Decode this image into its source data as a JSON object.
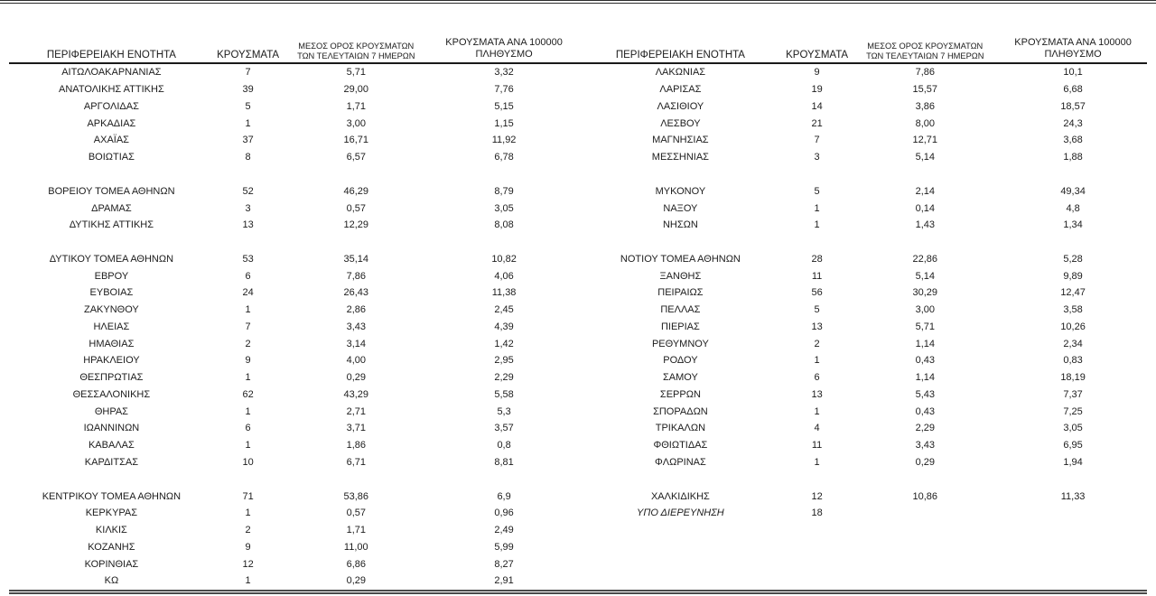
{
  "colors": {
    "text": "#1c1c1c",
    "header_rule": "#1a1a1a",
    "bottom_rule": "#4a4a4a",
    "top_rule": "#2b2b2b",
    "background": "#ffffff"
  },
  "headers": {
    "region": "ΠΕΡΙΦΕΡΕΙΑΚΗ ΕΝΟΤΗΤΑ",
    "cases": "ΚΡΟΥΣΜΑΤΑ",
    "avg7_line1": "ΜΕΣΟΣ ΟΡΟΣ ΚΡΟΥΣΜΑΤΩΝ",
    "avg7_line2": "ΤΩΝ ΤΕΛΕΥΤΑΙΩΝ 7 ΗΜΕΡΩΝ",
    "per100k_line1": "ΚΡΟΥΣΜΑΤΑ ΑΝΑ 100000",
    "per100k_line2": "ΠΛΗΘΥΣΜΟ"
  },
  "left_rows": [
    {
      "region": "ΑΙΤΩΛΟΑΚΑΡΝΑΝΙΑΣ",
      "cases": "7",
      "avg7": "5,71",
      "per100k": "3,32"
    },
    {
      "region": "ΑΝΑΤΟΛΙΚΗΣ ΑΤΤΙΚΗΣ",
      "cases": "39",
      "avg7": "29,00",
      "per100k": "7,76"
    },
    {
      "region": "ΑΡΓΟΛΙΔΑΣ",
      "cases": "5",
      "avg7": "1,71",
      "per100k": "5,15"
    },
    {
      "region": "ΑΡΚΑΔΙΑΣ",
      "cases": "1",
      "avg7": "3,00",
      "per100k": "1,15"
    },
    {
      "region": "ΑΧΑΪΑΣ",
      "cases": "37",
      "avg7": "16,71",
      "per100k": "11,92"
    },
    {
      "region": "ΒΟΙΩΤΙΑΣ",
      "cases": "8",
      "avg7": "6,57",
      "per100k": "6,78"
    },
    {
      "spacer": true
    },
    {
      "region": "ΒΟΡΕΙΟΥ ΤΟΜΕΑ ΑΘΗΝΩΝ",
      "cases": "52",
      "avg7": "46,29",
      "per100k": "8,79"
    },
    {
      "region": "ΔΡΑΜΑΣ",
      "cases": "3",
      "avg7": "0,57",
      "per100k": "3,05"
    },
    {
      "region": "ΔΥΤΙΚΗΣ ΑΤΤΙΚΗΣ",
      "cases": "13",
      "avg7": "12,29",
      "per100k": "8,08"
    },
    {
      "spacer": true
    },
    {
      "region": "ΔΥΤΙΚΟΥ ΤΟΜΕΑ ΑΘΗΝΩΝ",
      "cases": "53",
      "avg7": "35,14",
      "per100k": "10,82"
    },
    {
      "region": "ΕΒΡΟΥ",
      "cases": "6",
      "avg7": "7,86",
      "per100k": "4,06"
    },
    {
      "region": "ΕΥΒΟΙΑΣ",
      "cases": "24",
      "avg7": "26,43",
      "per100k": "11,38"
    },
    {
      "region": "ΖΑΚΥΝΘΟΥ",
      "cases": "1",
      "avg7": "2,86",
      "per100k": "2,45"
    },
    {
      "region": "ΗΛΕΙΑΣ",
      "cases": "7",
      "avg7": "3,43",
      "per100k": "4,39"
    },
    {
      "region": "ΗΜΑΘΙΑΣ",
      "cases": "2",
      "avg7": "3,14",
      "per100k": "1,42"
    },
    {
      "region": "ΗΡΑΚΛΕΙΟΥ",
      "cases": "9",
      "avg7": "4,00",
      "per100k": "2,95"
    },
    {
      "region": "ΘΕΣΠΡΩΤΙΑΣ",
      "cases": "1",
      "avg7": "0,29",
      "per100k": "2,29"
    },
    {
      "region": "ΘΕΣΣΑΛΟΝΙΚΗΣ",
      "cases": "62",
      "avg7": "43,29",
      "per100k": "5,58"
    },
    {
      "region": "ΘΗΡΑΣ",
      "cases": "1",
      "avg7": "2,71",
      "per100k": "5,3"
    },
    {
      "region": "ΙΩΑΝΝΙΝΩΝ",
      "cases": "6",
      "avg7": "3,71",
      "per100k": "3,57"
    },
    {
      "region": "ΚΑΒΑΛΑΣ",
      "cases": "1",
      "avg7": "1,86",
      "per100k": "0,8"
    },
    {
      "region": "ΚΑΡΔΙΤΣΑΣ",
      "cases": "10",
      "avg7": "6,71",
      "per100k": "8,81"
    },
    {
      "spacer": true
    },
    {
      "region": "ΚΕΝΤΡΙΚΟΥ ΤΟΜΕΑ ΑΘΗΝΩΝ",
      "cases": "71",
      "avg7": "53,86",
      "per100k": "6,9"
    },
    {
      "region": "ΚΕΡΚΥΡΑΣ",
      "cases": "1",
      "avg7": "0,57",
      "per100k": "0,96"
    },
    {
      "region": "ΚΙΛΚΙΣ",
      "cases": "2",
      "avg7": "1,71",
      "per100k": "2,49"
    },
    {
      "region": "ΚΟΖΑΝΗΣ",
      "cases": "9",
      "avg7": "11,00",
      "per100k": "5,99"
    },
    {
      "region": "ΚΟΡΙΝΘΙΑΣ",
      "cases": "12",
      "avg7": "6,86",
      "per100k": "8,27"
    },
    {
      "region": "ΚΩ",
      "cases": "1",
      "avg7": "0,29",
      "per100k": "2,91"
    }
  ],
  "right_rows": [
    {
      "region": "ΛΑΚΩΝΙΑΣ",
      "cases": "9",
      "avg7": "7,86",
      "per100k": "10,1"
    },
    {
      "region": "ΛΑΡΙΣΑΣ",
      "cases": "19",
      "avg7": "15,57",
      "per100k": "6,68"
    },
    {
      "region": "ΛΑΣΙΘΙΟΥ",
      "cases": "14",
      "avg7": "3,86",
      "per100k": "18,57"
    },
    {
      "region": "ΛΕΣΒΟΥ",
      "cases": "21",
      "avg7": "8,00",
      "per100k": "24,3"
    },
    {
      "region": "ΜΑΓΝΗΣΙΑΣ",
      "cases": "7",
      "avg7": "12,71",
      "per100k": "3,68"
    },
    {
      "region": "ΜΕΣΣΗΝΙΑΣ",
      "cases": "3",
      "avg7": "5,14",
      "per100k": "1,88"
    },
    {
      "spacer": true
    },
    {
      "region": "ΜΥΚΟΝΟΥ",
      "cases": "5",
      "avg7": "2,14",
      "per100k": "49,34"
    },
    {
      "region": "ΝΑΞΟΥ",
      "cases": "1",
      "avg7": "0,14",
      "per100k": "4,8"
    },
    {
      "region": "ΝΗΣΩΝ",
      "cases": "1",
      "avg7": "1,43",
      "per100k": "1,34"
    },
    {
      "spacer": true
    },
    {
      "region": "ΝΟΤΙΟΥ ΤΟΜΕΑ ΑΘΗΝΩΝ",
      "cases": "28",
      "avg7": "22,86",
      "per100k": "5,28"
    },
    {
      "region": "ΞΑΝΘΗΣ",
      "cases": "11",
      "avg7": "5,14",
      "per100k": "9,89"
    },
    {
      "region": "ΠΕΙΡΑΙΩΣ",
      "cases": "56",
      "avg7": "30,29",
      "per100k": "12,47"
    },
    {
      "region": "ΠΕΛΛΑΣ",
      "cases": "5",
      "avg7": "3,00",
      "per100k": "3,58"
    },
    {
      "region": "ΠΙΕΡΙΑΣ",
      "cases": "13",
      "avg7": "5,71",
      "per100k": "10,26"
    },
    {
      "region": "ΡΕΘΥΜΝΟΥ",
      "cases": "2",
      "avg7": "1,14",
      "per100k": "2,34"
    },
    {
      "region": "ΡΟΔΟΥ",
      "cases": "1",
      "avg7": "0,43",
      "per100k": "0,83"
    },
    {
      "region": "ΣΑΜΟΥ",
      "cases": "6",
      "avg7": "1,14",
      "per100k": "18,19"
    },
    {
      "region": "ΣΕΡΡΩΝ",
      "cases": "13",
      "avg7": "5,43",
      "per100k": "7,37"
    },
    {
      "region": "ΣΠΟΡΑΔΩΝ",
      "cases": "1",
      "avg7": "0,43",
      "per100k": "7,25"
    },
    {
      "region": "ΤΡΙΚΑΛΩΝ",
      "cases": "4",
      "avg7": "2,29",
      "per100k": "3,05"
    },
    {
      "region": "ΦΘΙΩΤΙΔΑΣ",
      "cases": "11",
      "avg7": "3,43",
      "per100k": "6,95"
    },
    {
      "region": "ΦΛΩΡΙΝΑΣ",
      "cases": "1",
      "avg7": "0,29",
      "per100k": "1,94"
    },
    {
      "spacer": true
    },
    {
      "region": "ΧΑΛΚΙΔΙΚΗΣ",
      "cases": "12",
      "avg7": "10,86",
      "per100k": "11,33"
    },
    {
      "region": "ΥΠΟ ΔΙΕΡΕΥΝΗΣΗ",
      "cases": "18",
      "avg7": "",
      "per100k": "",
      "italic": true
    },
    {
      "spacer": true
    },
    {
      "spacer": true
    },
    {
      "spacer": true
    },
    {
      "spacer": true
    }
  ]
}
